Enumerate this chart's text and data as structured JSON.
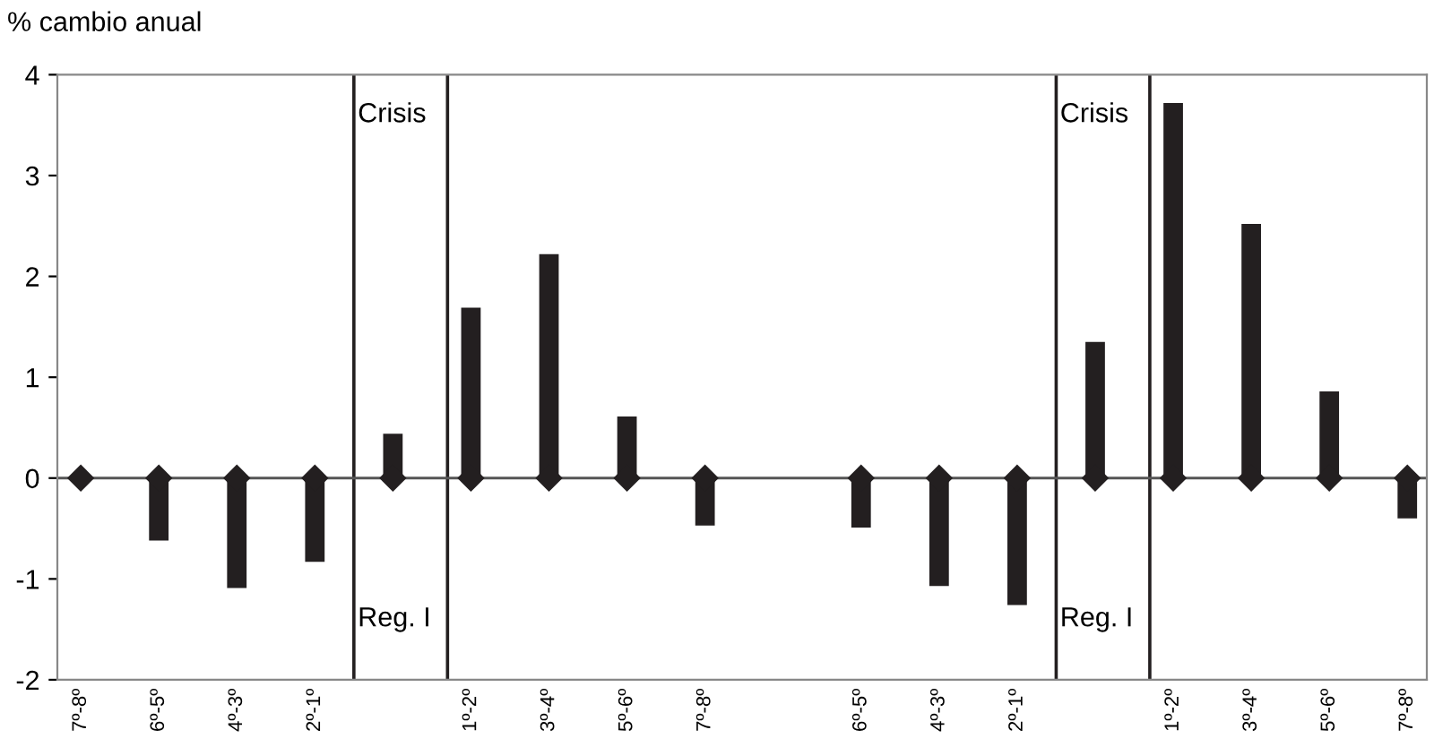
{
  "chart_data": {
    "type": "bar",
    "ylabel": "% cambio anual",
    "categories": [
      "7º-8º",
      "6º-5º",
      "4º-3º",
      "2º-1º",
      null,
      "1º-2º",
      "3º-4º",
      "5º-6º",
      "7º-8º",
      null,
      "6º-5º",
      "4º-3º",
      "2º-1º",
      null,
      "1º-2º",
      "3º-4º",
      "5º-6º",
      "7º-8º"
    ],
    "series": [
      {
        "color": "#231f20",
        "values": [
          0,
          -0.62,
          -1.09,
          -0.83,
          0.44,
          1.69,
          2.22,
          0.61,
          -0.47,
          null,
          -0.49,
          -1.07,
          -1.26,
          1.35,
          3.72,
          2.52,
          0.86,
          -0.4
        ]
      },
      {
        "type": "scatter",
        "marker": "diamond",
        "color": "#231f20",
        "values": [
          0,
          0,
          0,
          0,
          0,
          0,
          0,
          0,
          0,
          null,
          0,
          0,
          0,
          0,
          0,
          0,
          0,
          0
        ]
      }
    ],
    "ylim": [
      -2,
      4
    ],
    "yticks": [
      -2,
      -1,
      0,
      1,
      2,
      3,
      4
    ],
    "grid": false,
    "legend": false,
    "ref_lines": [
      {
        "axis": "y",
        "value": 0,
        "color": "#555555"
      }
    ],
    "annotations": [
      "Crisis",
      "Reg. I",
      "Crisis",
      "Reg. I"
    ]
  }
}
